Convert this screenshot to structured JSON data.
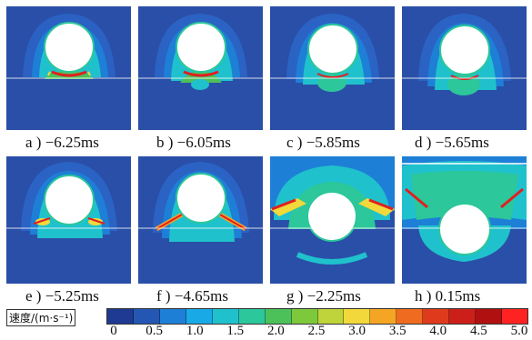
{
  "panels": [
    {
      "id": "a",
      "caption": "a ) −6.25ms"
    },
    {
      "id": "b",
      "caption": "b ) −6.05ms"
    },
    {
      "id": "c",
      "caption": "c ) −5.85ms"
    },
    {
      "id": "d",
      "caption": "d ) −5.65ms"
    },
    {
      "id": "e",
      "caption": "e ) −5.25ms"
    },
    {
      "id": "f",
      "caption": "f ) −4.65ms"
    },
    {
      "id": "g",
      "caption": "g ) −2.25ms"
    },
    {
      "id": "h",
      "caption": "h ) 0.15ms"
    }
  ],
  "legend": {
    "title": "速度/(m·s⁻¹)",
    "ticks": [
      "0",
      "0.5",
      "1.0",
      "1.5",
      "2.0",
      "2.5",
      "3.0",
      "3.5",
      "4.0",
      "4.5",
      "5.0"
    ],
    "colors": [
      "#1f3a93",
      "#2456b4",
      "#1e7fd6",
      "#18a9e6",
      "#1fc2cc",
      "#2cc79a",
      "#4cc15a",
      "#7ec83c",
      "#bfd33a",
      "#f2d83a",
      "#f5a524",
      "#ef6b1f",
      "#e03a1c",
      "#cc1f1a",
      "#b01010",
      "#ff2222"
    ]
  },
  "colors": {
    "background_fluid": "#2a4fa8",
    "sphere": "#ffffff",
    "halo_outer": "#1e7fd6",
    "halo_mid": "#1fc2cc",
    "halo_inner": "#4cc15a",
    "hot": "#e02020"
  }
}
